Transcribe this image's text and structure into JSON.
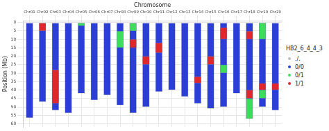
{
  "chart_data": {
    "type": "bar",
    "x_label": "Chromosome",
    "y_label": "Position (Mb)",
    "legend_title": "HB2_6_4_4_3",
    "categories": [
      "Chr01",
      "Chr02",
      "Chr03",
      "Chr04",
      "Chr05",
      "Chr06",
      "Chr07",
      "Chr08",
      "Chr09",
      "Chr10",
      "Chr11",
      "Chr12",
      "Chr13",
      "Chr14",
      "Chr15",
      "Chr16",
      "Chr17",
      "Chr18",
      "Chr19",
      "Chr20"
    ],
    "ylim": [
      -1,
      62
    ],
    "yticks": [
      0,
      5,
      10,
      15,
      20,
      25,
      30,
      35,
      40,
      45,
      50,
      55,
      60
    ],
    "grid": true,
    "series": [
      {
        "name": "./.",
        "color": "#bdbdbd",
        "segments": []
      },
      {
        "name": "0/0",
        "color": "#2b3fd6",
        "segments": [
          [
            "Chr01",
            0,
            56.5
          ],
          [
            "Chr02",
            0,
            47
          ],
          [
            "Chr03",
            0,
            52
          ],
          [
            "Chr04",
            0,
            53.7
          ],
          [
            "Chr05",
            0,
            42
          ],
          [
            "Chr06",
            0,
            46
          ],
          [
            "Chr07",
            0,
            43
          ],
          [
            "Chr08",
            0,
            49
          ],
          [
            "Chr09",
            0,
            53.7
          ],
          [
            "Chr10",
            0,
            50
          ],
          [
            "Chr11",
            0,
            41
          ],
          [
            "Chr12",
            0,
            40
          ],
          [
            "Chr13",
            0,
            44
          ],
          [
            "Chr14",
            0,
            48
          ],
          [
            "Chr15",
            0,
            51
          ],
          [
            "Chr16",
            0,
            50
          ],
          [
            "Chr17",
            0,
            42
          ],
          [
            "Chr18",
            0,
            57
          ],
          [
            "Chr19",
            0,
            50
          ],
          [
            "Chr20",
            0,
            52
          ]
        ]
      },
      {
        "name": "0/1",
        "color": "#3ddc5a",
        "segments": [
          [
            "Chr05",
            0,
            2
          ],
          [
            "Chr08",
            5,
            15
          ],
          [
            "Chr09",
            0,
            5
          ],
          [
            "Chr16",
            25,
            30
          ],
          [
            "Chr18",
            45,
            57
          ],
          [
            "Chr19",
            0,
            10
          ],
          [
            "Chr19",
            40,
            45
          ]
        ]
      },
      {
        "name": "1/1",
        "color": "#e0282c",
        "segments": [
          [
            "Chr02",
            0,
            5
          ],
          [
            "Chr03",
            28,
            48
          ],
          [
            "Chr09",
            10,
            15
          ],
          [
            "Chr10",
            20,
            25
          ],
          [
            "Chr11",
            12,
            18
          ],
          [
            "Chr14",
            32,
            36
          ],
          [
            "Chr15",
            20,
            25
          ],
          [
            "Chr16",
            3,
            10
          ],
          [
            "Chr18",
            5,
            10
          ],
          [
            "Chr18",
            40,
            45
          ],
          [
            "Chr19",
            36,
            40
          ],
          [
            "Chr20",
            36,
            40
          ]
        ]
      }
    ]
  }
}
